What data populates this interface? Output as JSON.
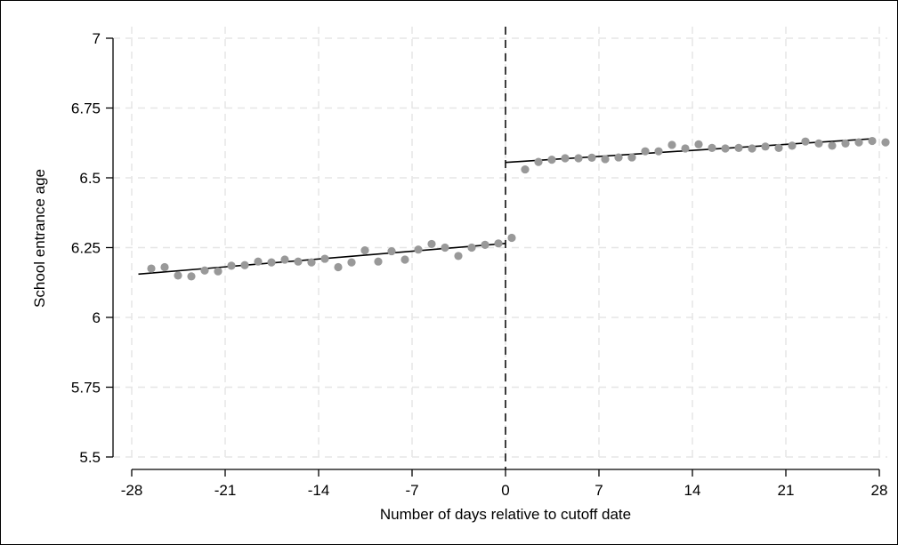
{
  "chart_data": {
    "type": "scatter",
    "title": "",
    "xlabel": "Number of days relative to cutoff date",
    "ylabel": "School entrance age",
    "xlim": [
      -28,
      28
    ],
    "ylim": [
      5.5,
      7
    ],
    "xticks": [
      -28,
      -21,
      -14,
      -7,
      0,
      7,
      14,
      21,
      28
    ],
    "yticks": [
      5.5,
      5.75,
      6,
      6.25,
      6.5,
      6.75,
      7
    ],
    "xtick_labels": [
      "-28",
      "-21",
      "-14",
      "-7",
      "0",
      "7",
      "14",
      "21",
      "28"
    ],
    "ytick_labels": [
      "5.5",
      "5.75",
      "6",
      "6.25",
      "6.5",
      "6.75",
      "7"
    ],
    "grid": true,
    "cutoff_line_x": 0,
    "series": [
      {
        "type": "scatter",
        "color": "#999999",
        "points": [
          [
            -27,
            6.175
          ],
          [
            -26,
            6.18
          ],
          [
            -25,
            6.15
          ],
          [
            -24,
            6.147
          ],
          [
            -23,
            6.168
          ],
          [
            -22,
            6.165
          ],
          [
            -21,
            6.185
          ],
          [
            -20,
            6.187
          ],
          [
            -19,
            6.2
          ],
          [
            -18,
            6.197
          ],
          [
            -17,
            6.207
          ],
          [
            -16,
            6.2
          ],
          [
            -15,
            6.197
          ],
          [
            -14,
            6.21
          ],
          [
            -13,
            6.18
          ],
          [
            -12,
            6.197
          ],
          [
            -11,
            6.24
          ],
          [
            -10,
            6.2
          ],
          [
            -9,
            6.237
          ],
          [
            -8,
            6.207
          ],
          [
            -7,
            6.243
          ],
          [
            -6,
            6.263
          ],
          [
            -5,
            6.25
          ],
          [
            -4,
            6.22
          ],
          [
            -3,
            6.25
          ],
          [
            -2,
            6.26
          ],
          [
            -1,
            6.265
          ],
          [
            0,
            6.285
          ],
          [
            1,
            6.53
          ],
          [
            2,
            6.557
          ],
          [
            3,
            6.565
          ],
          [
            4,
            6.57
          ],
          [
            5,
            6.57
          ],
          [
            6,
            6.572
          ],
          [
            7,
            6.567
          ],
          [
            8,
            6.573
          ],
          [
            9,
            6.573
          ],
          [
            10,
            6.595
          ],
          [
            11,
            6.595
          ],
          [
            12,
            6.618
          ],
          [
            13,
            6.605
          ],
          [
            14,
            6.62
          ],
          [
            15,
            6.607
          ],
          [
            16,
            6.605
          ],
          [
            17,
            6.607
          ],
          [
            18,
            6.605
          ],
          [
            19,
            6.612
          ],
          [
            20,
            6.607
          ],
          [
            21,
            6.615
          ],
          [
            22,
            6.63
          ],
          [
            23,
            6.623
          ],
          [
            24,
            6.615
          ],
          [
            25,
            6.623
          ],
          [
            26,
            6.627
          ],
          [
            27,
            6.632
          ],
          [
            28,
            6.627
          ]
        ]
      },
      {
        "type": "line",
        "color": "#000000",
        "points": [
          [
            -27.5,
            6.155
          ],
          [
            0,
            6.265
          ]
        ]
      },
      {
        "type": "line",
        "color": "#000000",
        "points": [
          [
            0,
            6.555
          ],
          [
            27.5,
            6.64
          ]
        ]
      }
    ]
  }
}
